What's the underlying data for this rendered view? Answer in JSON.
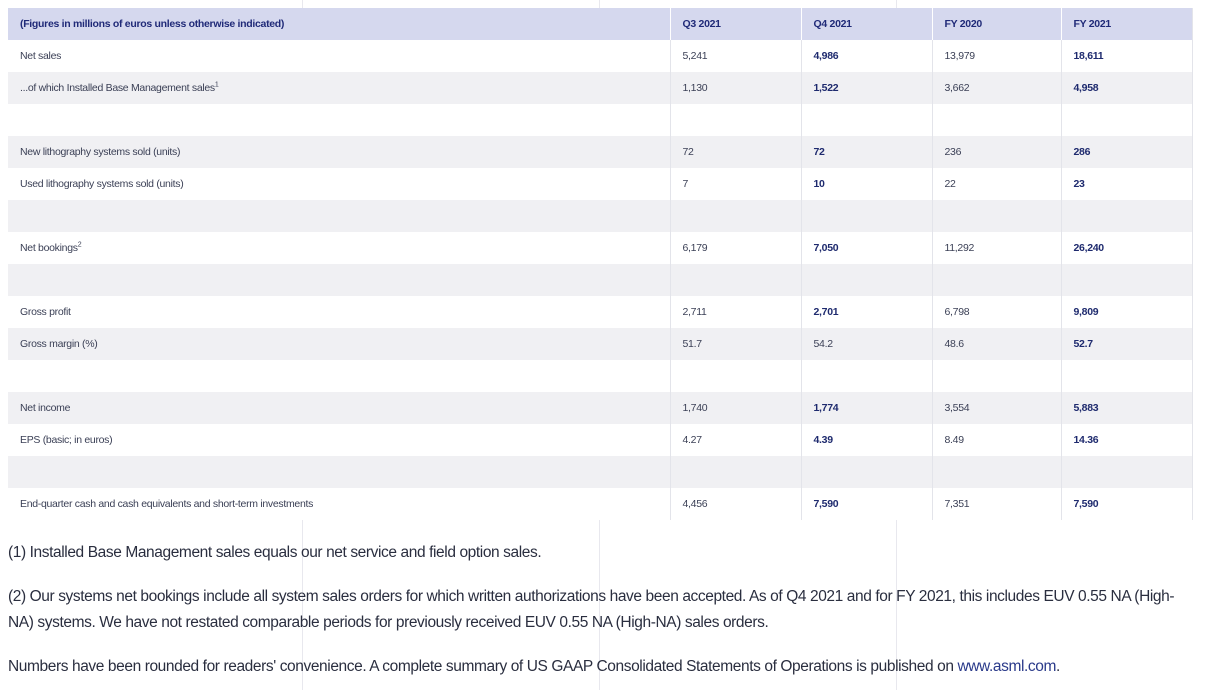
{
  "table": {
    "headers": [
      "(Figures in millions of euros unless otherwise indicated)",
      "Q3 2021",
      "Q4 2021",
      "FY 2020",
      "FY 2021"
    ],
    "rows": [
      {
        "label": "Net sales",
        "sup": "",
        "values": [
          "5,241",
          "4,986",
          "13,979",
          "18,611"
        ]
      },
      {
        "label": "...of which Installed Base Management sales",
        "sup": "1",
        "values": [
          "1,130",
          "1,522",
          "3,662",
          "4,958"
        ]
      },
      {
        "label": "",
        "sup": "",
        "values": [
          "",
          "",
          "",
          ""
        ]
      },
      {
        "label": "New lithography systems sold (units)",
        "sup": "",
        "values": [
          "72",
          "72",
          "236",
          "286"
        ]
      },
      {
        "label": "Used lithography systems sold (units)",
        "sup": "",
        "values": [
          "7",
          "10",
          "22",
          "23"
        ]
      },
      {
        "label": "",
        "sup": "",
        "values": [
          "",
          "",
          "",
          ""
        ]
      },
      {
        "label": "Net bookings",
        "sup": "2",
        "values": [
          "6,179",
          "7,050",
          "11,292",
          "26,240"
        ]
      },
      {
        "label": "",
        "sup": "",
        "values": [
          "",
          "",
          "",
          ""
        ]
      },
      {
        "label": "Gross profit",
        "sup": "",
        "values": [
          "2,711",
          "2,701",
          "6,798",
          "9,809"
        ]
      },
      {
        "label": "Gross margin (%)",
        "sup": "",
        "values": [
          "51.7",
          "54.2",
          "48.6",
          "52.7"
        ]
      },
      {
        "label": "",
        "sup": "",
        "values": [
          "",
          "",
          "",
          ""
        ]
      },
      {
        "label": "Net income",
        "sup": "",
        "values": [
          "1,740",
          "1,774",
          "3,554",
          "5,883"
        ]
      },
      {
        "label": "EPS (basic; in euros)",
        "sup": "",
        "values": [
          "4.27",
          "4.39",
          "8.49",
          "14.36"
        ]
      },
      {
        "label": "",
        "sup": "",
        "values": [
          "",
          "",
          "",
          ""
        ]
      },
      {
        "label": "End-quarter cash and cash equivalents and short-term investments",
        "sup": "",
        "values": [
          "4,456",
          "7,590",
          "7,351",
          "7,590"
        ]
      }
    ]
  },
  "notes": {
    "note1": "(1) Installed Base Management sales equals our net service and field option sales.",
    "note2": "(2) Our systems net bookings include all system sales orders for which written authorizations have been accepted. As of Q4 2021 and for FY 2021, this includes EUV 0.55 NA (High-NA) systems. We have not restated comparable periods for previously received EUV 0.55 NA (High-NA) sales orders.",
    "note3_text": "Numbers have been rounded for readers' convenience. A complete summary of US GAAP Consolidated Statements of Operations is published on ",
    "note3_link": "www.asml.com",
    "note3_end": "."
  },
  "colors": {
    "header_bg": "#d5d8ee",
    "header_text": "#202a78",
    "row_alt": "#f0f0f3",
    "bold_text": "#1e2a6e"
  }
}
